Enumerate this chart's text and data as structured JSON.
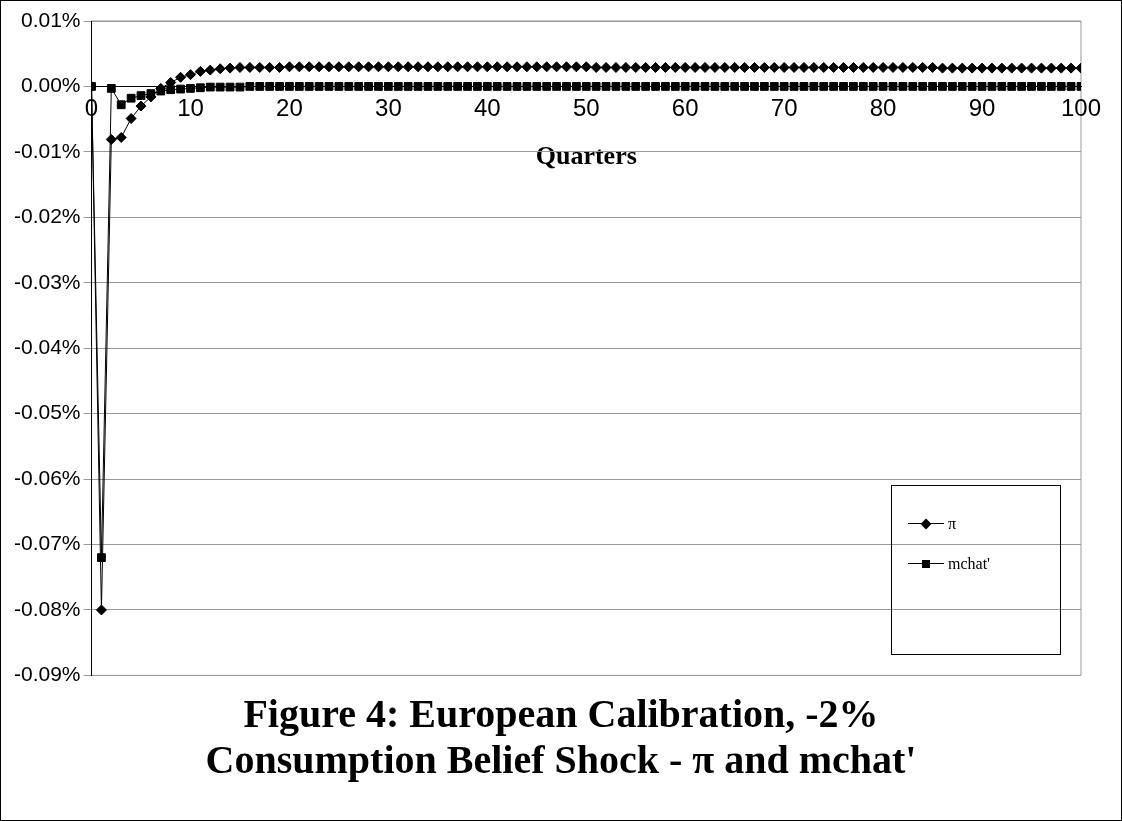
{
  "chart_data": {
    "type": "line",
    "title": "Figure 4: European Calibration, -2% Consumption Belief Shock - π and mchat'",
    "xlabel": "Quarters",
    "x": [
      0,
      1,
      2,
      3,
      4,
      5,
      6,
      7,
      8,
      9,
      10,
      11,
      12,
      13,
      14,
      15,
      16,
      17,
      18,
      19,
      20,
      21,
      22,
      23,
      24,
      25,
      26,
      27,
      28,
      29,
      30,
      31,
      32,
      33,
      34,
      35,
      36,
      37,
      38,
      39,
      40,
      41,
      42,
      43,
      44,
      45,
      46,
      47,
      48,
      49,
      50,
      51,
      52,
      53,
      54,
      55,
      56,
      57,
      58,
      59,
      60,
      61,
      62,
      63,
      64,
      65,
      66,
      67,
      68,
      69,
      70,
      71,
      72,
      73,
      74,
      75,
      76,
      77,
      78,
      79,
      80,
      81,
      82,
      83,
      84,
      85,
      86,
      87,
      88,
      89,
      90,
      91,
      92,
      93,
      94,
      95,
      96,
      97,
      98,
      99,
      100
    ],
    "series": [
      {
        "name": "π",
        "color": "#000000",
        "marker": "diamond",
        "values": [
          0,
          -0.08,
          -0.0081,
          -0.0078,
          -0.0049,
          -0.003,
          -0.0016,
          -0.0003,
          0.0006,
          0.0014,
          0.0018,
          0.0023,
          0.0025,
          0.0027,
          0.0028,
          0.0029,
          0.0029,
          0.0029,
          0.0029,
          0.0029,
          0.003,
          0.003,
          0.003,
          0.003,
          0.003,
          0.003,
          0.003,
          0.003,
          0.003,
          0.003,
          0.003,
          0.003,
          0.003,
          0.003,
          0.003,
          0.003,
          0.003,
          0.003,
          0.003,
          0.003,
          0.003,
          0.003,
          0.003,
          0.003,
          0.003,
          0.003,
          0.003,
          0.003,
          0.003,
          0.003,
          0.003,
          0.0029,
          0.0029,
          0.0029,
          0.0029,
          0.0029,
          0.0029,
          0.0029,
          0.0029,
          0.0029,
          0.0029,
          0.0029,
          0.0029,
          0.0029,
          0.0029,
          0.0029,
          0.0029,
          0.0029,
          0.0029,
          0.0029,
          0.0029,
          0.0029,
          0.0029,
          0.0029,
          0.0029,
          0.0029,
          0.0029,
          0.0029,
          0.0029,
          0.0029,
          0.0029,
          0.0029,
          0.0029,
          0.0029,
          0.0029,
          0.0029,
          0.0028,
          0.0028,
          0.0028,
          0.0028,
          0.0028,
          0.0028,
          0.0028,
          0.0028,
          0.0028,
          0.0028,
          0.0028,
          0.0028,
          0.0028,
          0.0028,
          0.0028
        ]
      },
      {
        "name": "mchat'",
        "color": "#000000",
        "marker": "square",
        "values": [
          0,
          -0.072,
          -0.0003,
          -0.0028,
          -0.0018,
          -0.0014,
          -0.0011,
          -0.0007,
          -0.0005,
          -0.0004,
          -0.0003,
          -0.0002,
          -0.0001,
          -0.0001,
          -0.0001,
          -0.0001,
          0,
          0,
          0,
          0,
          0,
          0,
          0,
          0,
          0,
          0,
          0,
          0,
          0,
          0,
          0,
          0,
          0,
          0,
          0,
          0,
          0,
          0,
          0,
          0,
          0,
          0,
          0,
          0,
          0,
          0,
          0,
          0,
          0,
          0,
          0,
          0,
          0,
          0,
          0,
          0,
          0,
          0,
          0,
          0,
          0,
          0,
          0,
          0,
          0,
          0,
          0,
          0,
          0,
          0,
          0,
          0,
          0,
          0,
          0,
          0,
          0,
          0,
          0,
          0,
          0,
          0,
          0,
          0,
          0,
          0,
          0,
          0,
          0,
          0,
          0,
          0,
          0,
          0,
          0,
          0,
          0,
          0,
          0,
          0,
          0
        ]
      }
    ],
    "xlim": [
      0,
      100
    ],
    "xticks": [
      0,
      10,
      20,
      30,
      40,
      50,
      60,
      70,
      80,
      90,
      100
    ],
    "ylim": [
      -0.09,
      0.01
    ],
    "yticks": [
      {
        "value": -0.09,
        "label": "-0.09%"
      },
      {
        "value": -0.08,
        "label": "-0.08%"
      },
      {
        "value": -0.07,
        "label": "-0.07%"
      },
      {
        "value": -0.06,
        "label": "-0.06%"
      },
      {
        "value": -0.05,
        "label": "-0.05%"
      },
      {
        "value": -0.04,
        "label": "-0.04%"
      },
      {
        "value": -0.03,
        "label": "-0.03%"
      },
      {
        "value": -0.02,
        "label": "-0.02%"
      },
      {
        "value": -0.01,
        "label": "-0.01%"
      },
      {
        "value": 0,
        "label": "0.00%"
      },
      {
        "value": 0.01,
        "label": "0.01%"
      }
    ],
    "grid": "y",
    "legend": "bottom right",
    "line_style": "solid"
  }
}
